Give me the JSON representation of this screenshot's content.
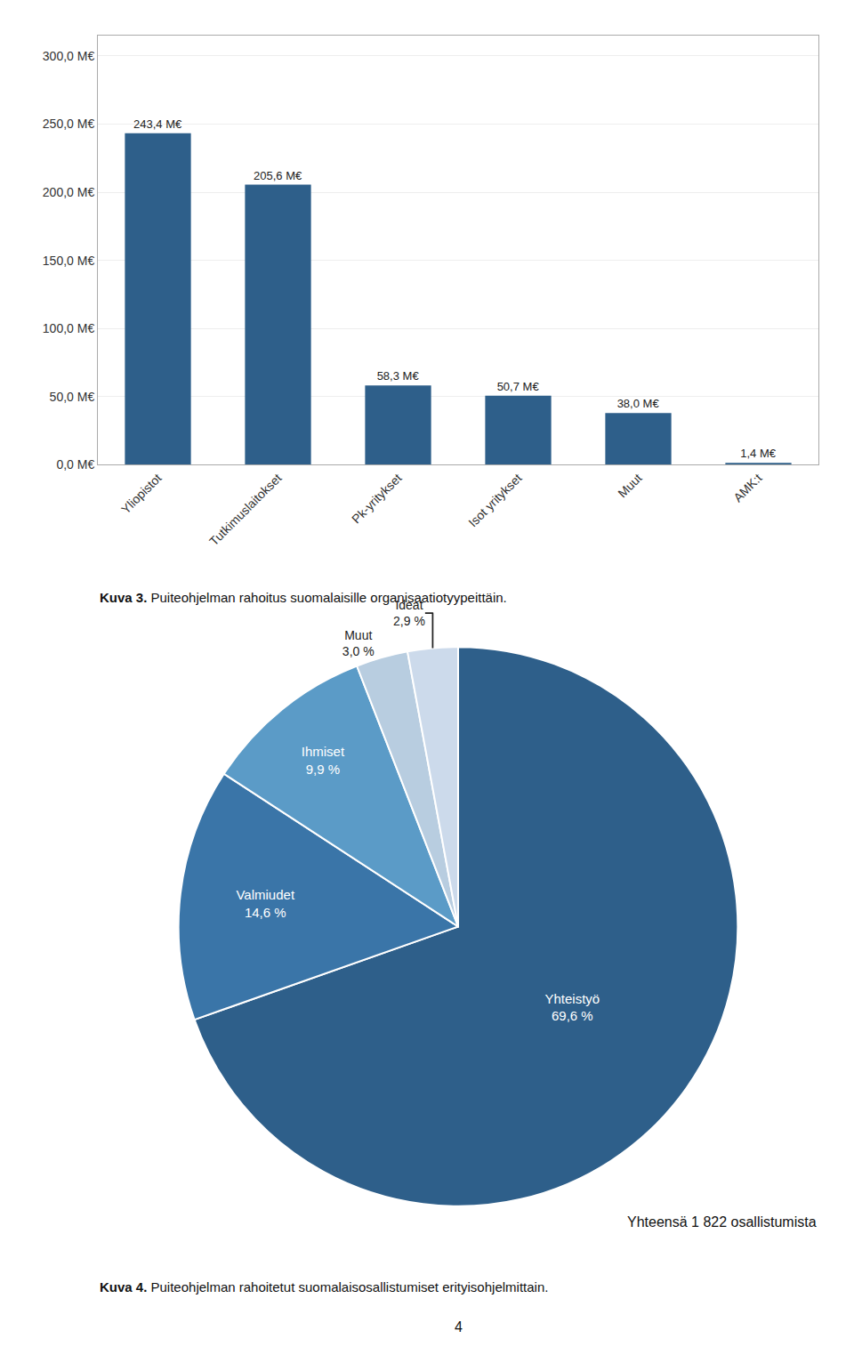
{
  "chart_data": [
    {
      "type": "bar",
      "categories": [
        "Yliopistot",
        "Tutkimuslaitokset",
        "Pk-yritykset",
        "Isot yritykset",
        "Muut",
        "AMK:t"
      ],
      "values": [
        243.4,
        205.6,
        58.3,
        50.7,
        38.0,
        1.4
      ],
      "value_labels": [
        "243,4 M€",
        "205,6 M€",
        "58,3 M€",
        "50,7 M€",
        "38,0 M€",
        "1,4 M€"
      ],
      "data_labels": true,
      "color": "#2E5F8A",
      "ylim": [
        0,
        315
      ],
      "yticks": [
        {
          "value": 0,
          "label": "0,0 M€"
        },
        {
          "value": 50,
          "label": "50,0 M€"
        },
        {
          "value": 100,
          "label": "100,0 M€"
        },
        {
          "value": 150,
          "label": "150,0 M€"
        },
        {
          "value": 200,
          "label": "200,0 M€"
        },
        {
          "value": 250,
          "label": "250,0 M€"
        },
        {
          "value": 300,
          "label": "300,0 M€"
        }
      ],
      "grid": true,
      "caption": {
        "label": "Kuva 3.",
        "text": "Puiteohjelman rahoitus suomalaisille organisaatiotyypeittäin."
      }
    },
    {
      "type": "pie",
      "categories": [
        "Yhteistyö",
        "Valmiudet",
        "Ihmiset",
        "Muut",
        "Ideat"
      ],
      "values": [
        69.6,
        14.6,
        9.9,
        3.0,
        2.9
      ],
      "value_labels": [
        "69,6 %",
        "14,6 %",
        "9,9 %",
        "3,0 %",
        "2,9 %"
      ],
      "data_labels": true,
      "colors": [
        "#2E5F8A",
        "#3A75A8",
        "#5B9BC7",
        "#B8CDE0",
        "#CCDAEB"
      ],
      "annotations": [
        "Yhteensä 1 822 osallistumista"
      ],
      "caption": {
        "label": "Kuva 4.",
        "text": "Puiteohjelman rahoitetut suomalaisosallistumiset erityisohjelmittain."
      }
    }
  ],
  "page_number": "4"
}
